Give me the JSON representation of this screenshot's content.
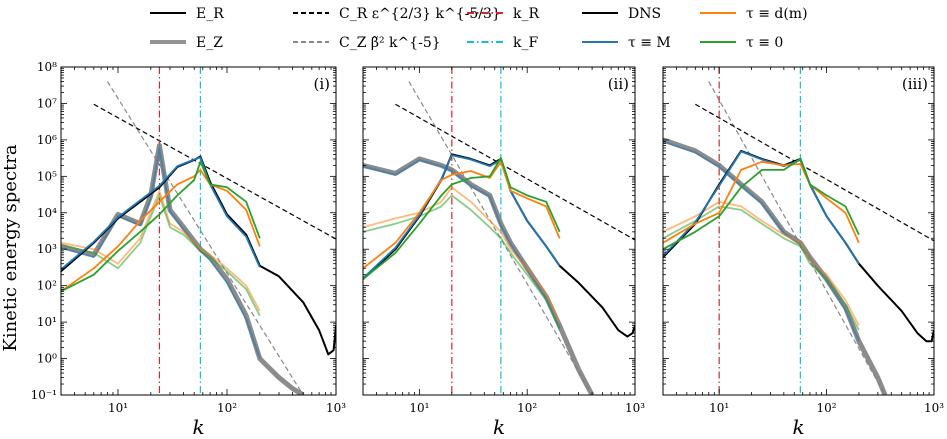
{
  "figure": {
    "ylabel": "Kinetic energy spectra",
    "xlabel": "k"
  },
  "legend": {
    "placement": "top",
    "entries": [
      {
        "label": "E_R",
        "style": "solid",
        "color": "#000000"
      },
      {
        "label": "E_Z",
        "style": "solid",
        "color": "#808080"
      },
      {
        "label": "C_R ε^{2/3} k^{-5/3}",
        "style": "dashed",
        "color": "#000000"
      },
      {
        "label": "C_Z β̃² k^{-5}",
        "style": "dashed",
        "color": "#888888"
      },
      {
        "label": "k_R",
        "style": "dashdot",
        "color": "#d62728"
      },
      {
        "label": "k_F",
        "style": "dashdot",
        "color": "#17becf"
      },
      {
        "label": "DNS",
        "style": "solid",
        "color": "#000000"
      },
      {
        "label": "τ ≡ M",
        "style": "solid",
        "color": "#1f77b4"
      },
      {
        "label": "τ ≡ d(m)",
        "style": "solid",
        "color": "#ff7f0e"
      },
      {
        "label": "τ ≡ 0",
        "style": "solid",
        "color": "#2ca02c"
      }
    ]
  },
  "axes": {
    "xscale": "log",
    "yscale": "log",
    "xlim": [
      3,
      1000
    ],
    "ylim": [
      0.1,
      100000000
    ],
    "xticks": [
      "10¹",
      "10²",
      "10³"
    ],
    "yticks": [
      "10⁻¹",
      "10⁰",
      "10¹",
      "10²",
      "10³",
      "10⁴",
      "10⁵",
      "10⁶",
      "10⁷",
      "10⁸"
    ]
  },
  "chart_data": [
    {
      "type": "line",
      "panel": "(i)",
      "kR": 24,
      "kF": 57,
      "ref_R": {
        "k": [
          6,
          1000
        ],
        "E": [
          9500000,
          1900
        ]
      },
      "ref_Z": {
        "k": [
          8,
          500
        ],
        "E": [
          40000000,
          0.1
        ]
      },
      "series": [
        {
          "name": "DNS",
          "component": "E_R",
          "x": [
            3,
            6,
            10,
            16,
            24,
            35,
            50,
            57,
            70,
            100,
            150,
            200,
            300,
            500,
            700,
            850,
            950,
            1000
          ],
          "y": [
            250,
            1500,
            7000,
            20000,
            50000,
            180000,
            280000,
            350000,
            70000,
            9000,
            2500,
            350,
            180,
            35,
            6,
            1.3,
            1.7,
            8
          ]
        },
        {
          "name": "τ ≡ M",
          "component": "E_R",
          "x": [
            3,
            6,
            10,
            16,
            24,
            35,
            50,
            57,
            70,
            100,
            150,
            200
          ],
          "y": [
            280,
            1600,
            7500,
            22000,
            55000,
            190000,
            290000,
            330000,
            60000,
            8000,
            2200,
            320
          ]
        },
        {
          "name": "τ ≡ d(m)",
          "component": "E_R",
          "x": [
            3,
            6,
            10,
            16,
            24,
            35,
            50,
            57,
            70,
            100,
            150,
            200
          ],
          "y": [
            70,
            300,
            1200,
            6000,
            20000,
            60000,
            100000,
            150000,
            60000,
            40000,
            12000,
            1200
          ]
        },
        {
          "name": "τ ≡ 0",
          "component": "E_R",
          "x": [
            3,
            6,
            10,
            16,
            24,
            35,
            50,
            57,
            70,
            100,
            150,
            200
          ],
          "y": [
            70,
            200,
            900,
            3000,
            9000,
            30000,
            80000,
            250000,
            60000,
            50000,
            20000,
            2000
          ]
        },
        {
          "name": "DNS",
          "component": "E_Z",
          "x": [
            3,
            6,
            10,
            16,
            20,
            24,
            30,
            40,
            57,
            70,
            100,
            150,
            200,
            300,
            400,
            500
          ],
          "y": [
            1200,
            700,
            9000,
            5000,
            30000,
            700000,
            12000,
            4000,
            1000,
            600,
            150,
            15,
            1,
            0.3,
            0.15,
            0.1
          ]
        },
        {
          "name": "τ ≡ M",
          "component": "E_Z",
          "x": [
            3,
            6,
            10,
            16,
            20,
            24,
            30,
            40,
            57,
            70,
            100,
            150,
            200
          ],
          "y": [
            1100,
            600,
            8000,
            4500,
            25000,
            600000,
            11000,
            3500,
            900,
            500,
            120,
            12,
            1
          ]
        },
        {
          "name": "τ ≡ d(m)",
          "component": "E_Z",
          "x": [
            3,
            6,
            10,
            16,
            24,
            30,
            40,
            57,
            70,
            100,
            150,
            200
          ],
          "y": [
            1500,
            1000,
            400,
            2000,
            40000,
            5000,
            3000,
            1000,
            700,
            300,
            100,
            20
          ]
        },
        {
          "name": "τ ≡ 0",
          "component": "E_Z",
          "x": [
            3,
            6,
            10,
            16,
            24,
            30,
            40,
            57,
            70,
            100,
            150,
            200
          ],
          "y": [
            1300,
            800,
            300,
            1500,
            30000,
            4000,
            2500,
            900,
            600,
            250,
            80,
            15
          ]
        }
      ]
    },
    {
      "type": "line",
      "panel": "(ii)",
      "kR": 20,
      "kF": 57,
      "ref_R": {
        "k": [
          6,
          1000
        ],
        "E": [
          9500000,
          1800
        ]
      },
      "ref_Z": {
        "k": [
          8,
          400
        ],
        "E": [
          40000000,
          0.1
        ]
      },
      "series": [
        {
          "name": "DNS",
          "component": "E_R",
          "x": [
            3,
            6,
            10,
            16,
            20,
            30,
            45,
            57,
            70,
            100,
            150,
            200,
            300,
            500,
            700,
            850,
            950,
            1000
          ],
          "y": [
            150,
            1000,
            8000,
            80000,
            400000,
            300000,
            200000,
            300000,
            40000,
            6000,
            1200,
            350,
            120,
            25,
            6,
            4,
            5,
            8
          ]
        },
        {
          "name": "τ ≡ M",
          "component": "E_R",
          "x": [
            3,
            6,
            10,
            16,
            20,
            30,
            45,
            57,
            70,
            100,
            150,
            200
          ],
          "y": [
            160,
            1100,
            8500,
            85000,
            380000,
            290000,
            190000,
            280000,
            40000,
            6000,
            1200,
            350
          ]
        },
        {
          "name": "τ ≡ d(m)",
          "component": "E_R",
          "x": [
            3,
            6,
            10,
            16,
            20,
            30,
            45,
            57,
            70,
            100,
            150,
            200
          ],
          "y": [
            300,
            1500,
            10000,
            80000,
            110000,
            140000,
            90000,
            250000,
            40000,
            25000,
            15000,
            2000
          ]
        },
        {
          "name": "τ ≡ 0",
          "component": "E_R",
          "x": [
            3,
            6,
            10,
            16,
            20,
            30,
            45,
            57,
            70,
            100,
            150,
            200
          ],
          "y": [
            150,
            800,
            5000,
            30000,
            60000,
            90000,
            100000,
            320000,
            50000,
            30000,
            20000,
            3000
          ]
        },
        {
          "name": "DNS",
          "component": "E_Z",
          "x": [
            3,
            6,
            10,
            16,
            20,
            30,
            45,
            57,
            70,
            100,
            150,
            200,
            300,
            400
          ],
          "y": [
            200000,
            120000,
            300000,
            200000,
            150000,
            60000,
            30000,
            5000,
            1500,
            300,
            50,
            8,
            0.5,
            0.1
          ]
        },
        {
          "name": "τ ≡ M",
          "component": "E_Z",
          "x": [
            3,
            6,
            10,
            16,
            20,
            30,
            45,
            57,
            70,
            100,
            150,
            200
          ],
          "y": [
            190000,
            110000,
            280000,
            190000,
            140000,
            55000,
            28000,
            4500,
            1400,
            280,
            45,
            7
          ]
        },
        {
          "name": "τ ≡ d(m)",
          "component": "E_Z",
          "x": [
            3,
            6,
            10,
            16,
            20,
            30,
            45,
            57,
            70,
            100,
            150,
            200
          ],
          "y": [
            4000,
            7000,
            10000,
            20000,
            50000,
            20000,
            6000,
            3000,
            1000,
            300,
            60,
            10
          ]
        },
        {
          "name": "τ ≡ 0",
          "component": "E_Z",
          "x": [
            3,
            6,
            10,
            16,
            20,
            30,
            45,
            57,
            70,
            100,
            150,
            200
          ],
          "y": [
            3000,
            5000,
            8000,
            15000,
            30000,
            12000,
            4000,
            2000,
            800,
            200,
            40,
            6
          ]
        }
      ]
    },
    {
      "type": "line",
      "panel": "(iii)",
      "kR": 10,
      "kF": 57,
      "ref_R": {
        "k": [
          6,
          1000
        ],
        "E": [
          9500000,
          1700
        ]
      },
      "ref_Z": {
        "k": [
          8,
          350
        ],
        "E": [
          40000000,
          0.1
        ]
      },
      "series": [
        {
          "name": "DNS",
          "component": "E_R",
          "x": [
            3,
            6,
            10,
            16,
            25,
            40,
            57,
            70,
            100,
            150,
            200,
            300,
            500,
            700,
            850,
            950,
            1000
          ],
          "y": [
            600,
            5000,
            60000,
            500000,
            300000,
            200000,
            300000,
            60000,
            8000,
            1500,
            400,
            100,
            20,
            5,
            3,
            3,
            6
          ]
        },
        {
          "name": "τ ≡ M",
          "component": "E_R",
          "x": [
            3,
            6,
            10,
            16,
            25,
            40,
            57,
            70,
            100,
            150,
            200
          ],
          "y": [
            650,
            5500,
            55000,
            480000,
            290000,
            190000,
            280000,
            60000,
            8000,
            1500,
            400
          ]
        },
        {
          "name": "τ ≡ d(m)",
          "component": "E_R",
          "x": [
            3,
            6,
            10,
            16,
            25,
            40,
            57,
            70,
            100,
            150,
            200
          ],
          "y": [
            1500,
            5000,
            10000,
            150000,
            250000,
            200000,
            220000,
            60000,
            25000,
            10000,
            1500
          ]
        },
        {
          "name": "τ ≡ 0",
          "component": "E_R",
          "x": [
            3,
            6,
            10,
            16,
            25,
            40,
            57,
            70,
            100,
            150,
            200
          ],
          "y": [
            1000,
            3000,
            8000,
            50000,
            150000,
            150000,
            300000,
            60000,
            30000,
            15000,
            2500
          ]
        },
        {
          "name": "DNS",
          "component": "E_Z",
          "x": [
            3,
            6,
            10,
            16,
            25,
            40,
            57,
            70,
            100,
            150,
            200,
            300,
            350
          ],
          "y": [
            1000000,
            500000,
            200000,
            60000,
            20000,
            3000,
            1500,
            600,
            150,
            25,
            3,
            0.3,
            0.1
          ]
        },
        {
          "name": "τ ≡ M",
          "component": "E_Z",
          "x": [
            3,
            6,
            10,
            16,
            25,
            40,
            57,
            70,
            100,
            150,
            200
          ],
          "y": [
            900000,
            450000,
            180000,
            55000,
            18000,
            2800,
            1400,
            550,
            140,
            22,
            3
          ]
        },
        {
          "name": "τ ≡ d(m)",
          "component": "E_Z",
          "x": [
            3,
            6,
            10,
            16,
            25,
            40,
            57,
            70,
            100,
            150,
            200
          ],
          "y": [
            3000,
            8000,
            20000,
            15000,
            6000,
            2500,
            1500,
            500,
            200,
            40,
            8
          ]
        },
        {
          "name": "τ ≡ 0",
          "component": "E_Z",
          "x": [
            3,
            6,
            10,
            16,
            25,
            40,
            57,
            70,
            100,
            150,
            200
          ],
          "y": [
            2000,
            6000,
            15000,
            12000,
            5000,
            2000,
            1200,
            400,
            150,
            30,
            6
          ]
        }
      ]
    }
  ],
  "colors": {
    "dns": "#000000",
    "dns_z": "#808080",
    "tau_M": "#1f77b4",
    "tau_dm": "#ff7f0e",
    "tau_0": "#2ca02c",
    "kR": "#d62728",
    "kF": "#17becf",
    "refR": "#000000",
    "refZ": "#888888"
  }
}
